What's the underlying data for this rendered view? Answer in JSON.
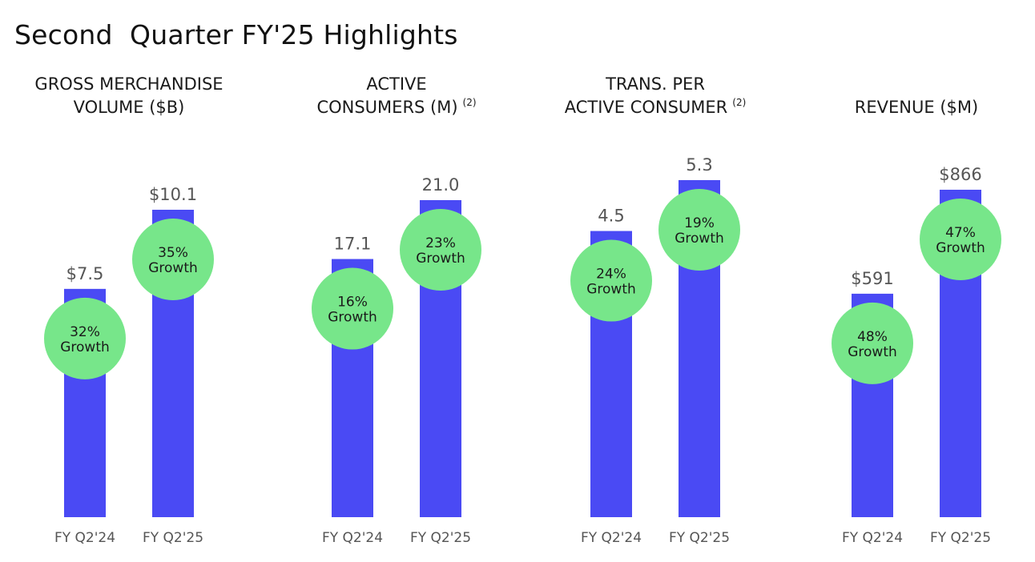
{
  "title": "Second  Quarter FY'25 Highlights",
  "colors": {
    "bar": "#4a4af4",
    "bubble": "#77e68a"
  },
  "chart_data": [
    {
      "type": "bar",
      "title_lines": [
        "GROSS MERCHANDISE",
        "VOLUME ($B)"
      ],
      "footnote": "",
      "categories": [
        "FY Q2'24",
        "FY Q2'25"
      ],
      "values": [
        7.5,
        10.1
      ],
      "value_labels": [
        "$7.5",
        "$10.1"
      ],
      "growth": [
        {
          "pct": "32%",
          "word": "Growth"
        },
        {
          "pct": "35%",
          "word": "Growth"
        }
      ]
    },
    {
      "type": "bar",
      "title_lines": [
        "ACTIVE",
        "CONSUMERS (M)"
      ],
      "footnote": "(2)",
      "categories": [
        "FY Q2'24",
        "FY Q2'25"
      ],
      "values": [
        17.1,
        21.0
      ],
      "value_labels": [
        "17.1",
        "21.0"
      ],
      "growth": [
        {
          "pct": "16%",
          "word": "Growth"
        },
        {
          "pct": "23%",
          "word": "Growth"
        }
      ]
    },
    {
      "type": "bar",
      "title_lines": [
        "TRANS. PER",
        "ACTIVE CONSUMER"
      ],
      "footnote": "(2)",
      "categories": [
        "FY Q2'24",
        "FY Q2'25"
      ],
      "values": [
        4.5,
        5.3
      ],
      "value_labels": [
        "4.5",
        "5.3"
      ],
      "growth": [
        {
          "pct": "24%",
          "word": "Growth"
        },
        {
          "pct": "19%",
          "word": "Growth"
        }
      ]
    },
    {
      "type": "bar",
      "title_lines": [
        "",
        "REVENUE ($M)"
      ],
      "footnote": "",
      "categories": [
        "FY Q2'24",
        "FY Q2'25"
      ],
      "values": [
        591,
        866
      ],
      "value_labels": [
        "$591",
        "$866"
      ],
      "growth": [
        {
          "pct": "48%",
          "word": "Growth"
        },
        {
          "pct": "47%",
          "word": "Growth"
        }
      ]
    }
  ]
}
